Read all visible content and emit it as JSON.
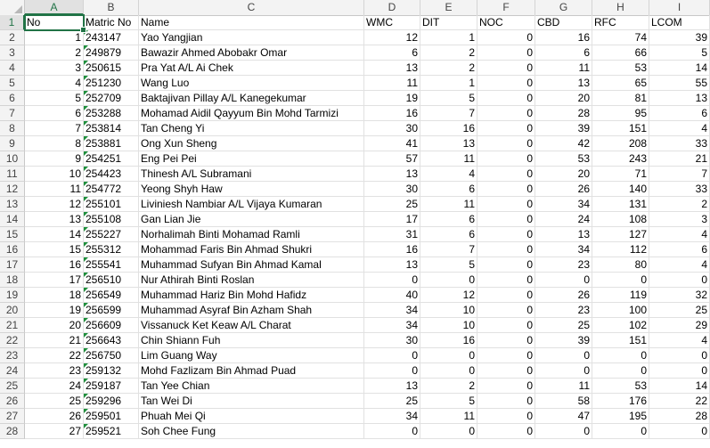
{
  "columns": [
    {
      "letter": "A",
      "w": 66
    },
    {
      "letter": "B",
      "w": 62
    },
    {
      "letter": "C",
      "w": 253
    },
    {
      "letter": "D",
      "w": 63
    },
    {
      "letter": "E",
      "w": 64
    },
    {
      "letter": "F",
      "w": 65
    },
    {
      "letter": "G",
      "w": 64
    },
    {
      "letter": "H",
      "w": 64
    },
    {
      "letter": "I",
      "w": 68
    }
  ],
  "headers": [
    "No",
    "Matric No",
    "Name",
    "WMC",
    "DIT",
    "NOC",
    "CBD",
    "RFC",
    "LCOM"
  ],
  "rows": [
    [
      "1",
      "243147",
      "Yao Yangjian",
      "12",
      "1",
      "0",
      "16",
      "74",
      "39"
    ],
    [
      "2",
      "249879",
      "Bawazir Ahmed Abobakr Omar",
      "6",
      "2",
      "0",
      "6",
      "66",
      "5"
    ],
    [
      "3",
      "250615",
      "Pra Yat A/L Ai Chek",
      "13",
      "2",
      "0",
      "11",
      "53",
      "14"
    ],
    [
      "4",
      "251230",
      "Wang Luo",
      "11",
      "1",
      "0",
      "13",
      "65",
      "55"
    ],
    [
      "5",
      "252709",
      "Baktajivan Pillay A/L Kanegekumar",
      "19",
      "5",
      "0",
      "20",
      "81",
      "13"
    ],
    [
      "6",
      "253288",
      "Mohamad Aidil Qayyum Bin Mohd Tarmizi",
      "16",
      "7",
      "0",
      "28",
      "95",
      "6"
    ],
    [
      "7",
      "253814",
      "Tan Cheng Yi",
      "30",
      "16",
      "0",
      "39",
      "151",
      "4"
    ],
    [
      "8",
      "253881",
      "Ong Xun Sheng",
      "41",
      "13",
      "0",
      "42",
      "208",
      "33"
    ],
    [
      "9",
      "254251",
      "Eng Pei Pei",
      "57",
      "11",
      "0",
      "53",
      "243",
      "21"
    ],
    [
      "10",
      "254423",
      "Thinesh A/L Subramani",
      "13",
      "4",
      "0",
      "20",
      "71",
      "7"
    ],
    [
      "11",
      "254772",
      "Yeong Shyh Haw",
      "30",
      "6",
      "0",
      "26",
      "140",
      "33"
    ],
    [
      "12",
      "255101",
      "Liviniesh Nambiar A/L Vijaya Kumaran",
      "25",
      "11",
      "0",
      "34",
      "131",
      "2"
    ],
    [
      "13",
      "255108",
      "Gan Lian Jie",
      "17",
      "6",
      "0",
      "24",
      "108",
      "3"
    ],
    [
      "14",
      "255227",
      "Norhalimah Binti Mohamad Ramli",
      "31",
      "6",
      "0",
      "13",
      "127",
      "4"
    ],
    [
      "15",
      "255312",
      "Mohammad Faris Bin Ahmad Shukri",
      "16",
      "7",
      "0",
      "34",
      "112",
      "6"
    ],
    [
      "16",
      "255541",
      "Muhammad Sufyan Bin Ahmad Kamal",
      "13",
      "5",
      "0",
      "23",
      "80",
      "4"
    ],
    [
      "17",
      "256510",
      "Nur Athirah Binti Roslan",
      "0",
      "0",
      "0",
      "0",
      "0",
      "0"
    ],
    [
      "18",
      "256549",
      "Muhammad Hariz Bin Mohd Hafidz",
      "40",
      "12",
      "0",
      "26",
      "119",
      "32"
    ],
    [
      "19",
      "256599",
      "Muhammad Asyraf Bin Azham Shah",
      "34",
      "10",
      "0",
      "23",
      "100",
      "25"
    ],
    [
      "20",
      "256609",
      "Vissanuck Ket Keaw A/L Charat",
      "34",
      "10",
      "0",
      "25",
      "102",
      "29"
    ],
    [
      "21",
      "256643",
      "Chin Shiann Fuh",
      "30",
      "16",
      "0",
      "39",
      "151",
      "4"
    ],
    [
      "22",
      "256750",
      "Lim Guang Way",
      "0",
      "0",
      "0",
      "0",
      "0",
      "0"
    ],
    [
      "23",
      "259132",
      "Mohd Fazlizam Bin Ahmad Puad",
      "0",
      "0",
      "0",
      "0",
      "0",
      "0"
    ],
    [
      "24",
      "259187",
      "Tan Yee Chian",
      "13",
      "2",
      "0",
      "11",
      "53",
      "14"
    ],
    [
      "25",
      "259296",
      "Tan Wei Di",
      "25",
      "5",
      "0",
      "58",
      "176",
      "22"
    ],
    [
      "26",
      "259501",
      "Phuah Mei Qi",
      "34",
      "11",
      "0",
      "47",
      "195",
      "28"
    ],
    [
      "27",
      "259521",
      "Soh Chee Fung",
      "0",
      "0",
      "0",
      "0",
      "0",
      "0"
    ]
  ],
  "active_cell": "A1",
  "accent_color": "#217346",
  "text_indicator_color": "#1e8f3c"
}
